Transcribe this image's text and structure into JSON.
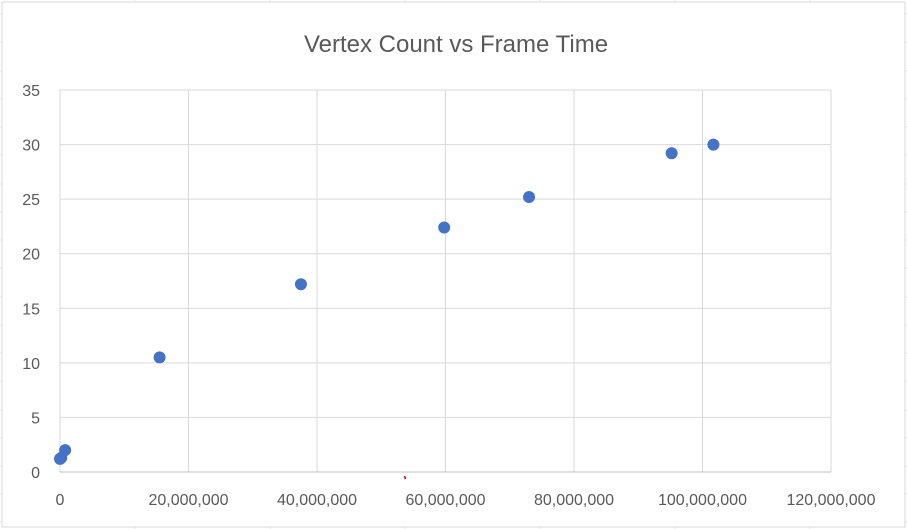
{
  "chart_data": {
    "type": "scatter",
    "title": "Vertex Count vs Frame Time",
    "xlabel": "",
    "ylabel": "",
    "xlim": [
      0,
      120000000
    ],
    "ylim": [
      0,
      35
    ],
    "xticks": [
      0,
      20000000,
      40000000,
      60000000,
      80000000,
      100000000,
      120000000
    ],
    "xtick_labels": [
      "0",
      "20,000,000",
      "40,000,000",
      "60,000,000",
      "80,000,000",
      "100,000,000",
      "120,000,000"
    ],
    "yticks": [
      0,
      5,
      10,
      15,
      20,
      25,
      30,
      35
    ],
    "ytick_labels": [
      "0",
      "5",
      "10",
      "15",
      "20",
      "25",
      "30",
      "35"
    ],
    "grid": true,
    "legend": "none",
    "marker_color": "#4472C4",
    "points": [
      {
        "x": 0,
        "y": 1.2
      },
      {
        "x": 200000,
        "y": 1.3
      },
      {
        "x": 800000,
        "y": 2.0
      },
      {
        "x": 15500000,
        "y": 10.5
      },
      {
        "x": 37500000,
        "y": 17.2
      },
      {
        "x": 59800000,
        "y": 22.4
      },
      {
        "x": 73000000,
        "y": 25.2
      },
      {
        "x": 95200000,
        "y": 29.2
      },
      {
        "x": 101700000,
        "y": 30.0
      }
    ]
  }
}
